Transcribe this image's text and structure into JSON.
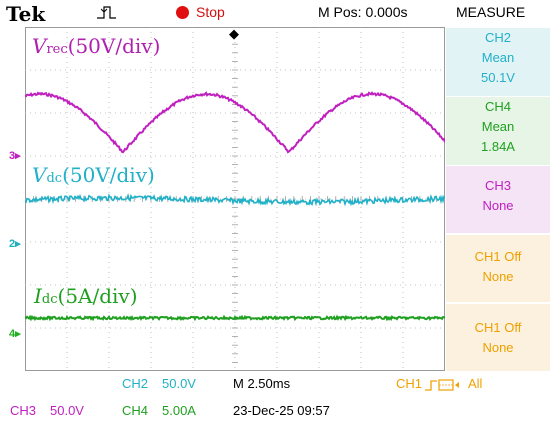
{
  "header": {
    "brand": "Tek",
    "acquisition_status": "Stop",
    "position_readout": "M Pos: 0.000s",
    "measure_title": "MEASURE",
    "trigger_icon": "pulse-trigger-icon"
  },
  "plot": {
    "channel_markers": [
      {
        "label": "3",
        "color": "#c020c0"
      },
      {
        "label": "2",
        "color": "#20b0c0"
      },
      {
        "label": "4",
        "color": "#20b020"
      }
    ],
    "traces": [
      {
        "symbol": "V",
        "subscript": "rec",
        "scale": "(50V/div)",
        "color": "#b020b0"
      },
      {
        "symbol": "V",
        "subscript": "dc",
        "scale": "(50V/div)",
        "color": "#20b0c8"
      },
      {
        "symbol": "I",
        "subscript": "dc",
        "scale": "(5A/div)",
        "color": "#20a020"
      }
    ]
  },
  "measure": [
    {
      "channel": "CH2",
      "type": "Mean",
      "value": "50.1V",
      "color": "#20b0c8",
      "bg": "#e2f3f6"
    },
    {
      "channel": "CH4",
      "type": "Mean",
      "value": "1.84A",
      "color": "#20a020",
      "bg": "#e6f5e6"
    },
    {
      "channel": "CH3",
      "type": "None",
      "value": "",
      "color": "#c020c0",
      "bg": "#f5e4f5"
    },
    {
      "channel": "CH1 Off",
      "type": "None",
      "value": "",
      "color": "#f0a000",
      "bg": "#fbf1de"
    },
    {
      "channel": "CH1 Off",
      "type": "None",
      "value": "",
      "color": "#f0a000",
      "bg": "#fbf1de"
    }
  ],
  "footer": {
    "ch2_label": "CH2",
    "ch2_scale": "50.0V",
    "timebase": "M 2.50ms",
    "trigger_source": "CH1",
    "trigger_mode": "All",
    "ch3_label": "CH3",
    "ch3_scale": "50.0V",
    "ch4_label": "CH4",
    "ch4_scale": "5.00A",
    "datetime": "23-Dec-25 09:57"
  },
  "colors": {
    "ch2": "#20b0c8",
    "ch3": "#c020c0",
    "ch4": "#20a020",
    "ch1": "#f0a000",
    "stop": "#e01010"
  }
}
